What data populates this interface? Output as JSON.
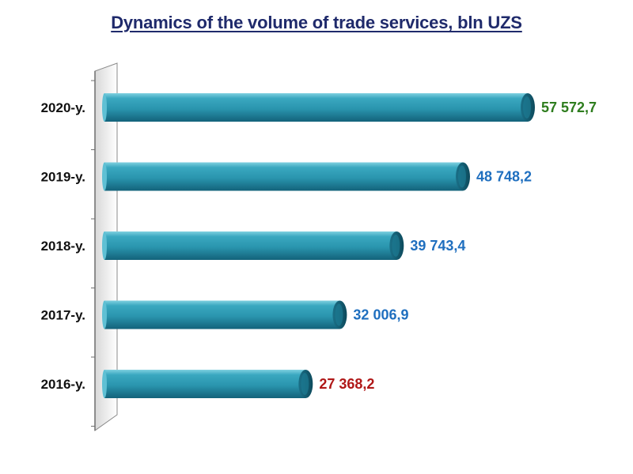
{
  "chart_data": {
    "type": "bar",
    "orientation": "horizontal",
    "title": "Dynamics of the volume of trade services, bln UZS",
    "categories": [
      "2020-y.",
      "2019-y.",
      "2018-y.",
      "2017-y.",
      "2016-y."
    ],
    "values": [
      57572.7,
      48748.2,
      39743.4,
      32006.9,
      27368.2
    ],
    "value_labels": [
      "57 572,7",
      "48 748,2",
      "39 743,4",
      "32 006,9",
      "27 368,2"
    ],
    "value_label_colors": [
      "#2e7d1e",
      "#1f6fbf",
      "#1f6fbf",
      "#1f6fbf",
      "#b01818"
    ],
    "bar_color": "#2a9bb5",
    "xlim": [
      0,
      57572.7
    ],
    "grid": false,
    "legend": "none"
  }
}
